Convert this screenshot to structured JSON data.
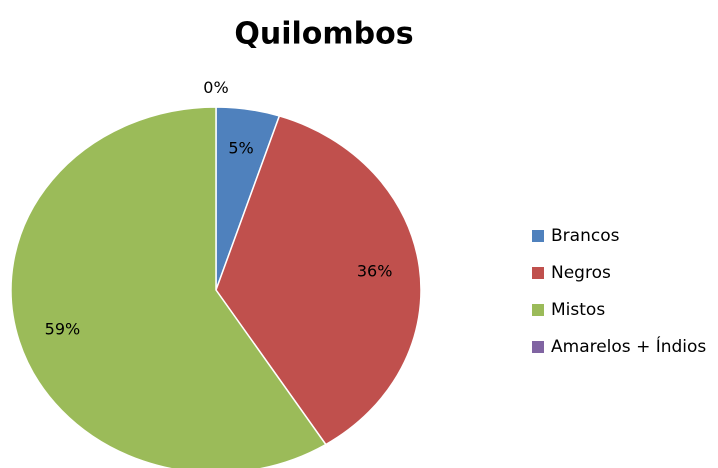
{
  "chart_data": {
    "type": "pie",
    "title": "Quilombos",
    "categories": [
      "Brancos",
      "Negros",
      "Mistos",
      "Amarelos + Índios"
    ],
    "values": [
      5,
      36,
      59,
      0
    ],
    "value_labels": [
      "5%",
      "36%",
      "59%",
      "0%"
    ],
    "colors": [
      "#4f81bd",
      "#c0504d",
      "#9bbb59",
      "#8064a2"
    ],
    "legend": "right"
  }
}
